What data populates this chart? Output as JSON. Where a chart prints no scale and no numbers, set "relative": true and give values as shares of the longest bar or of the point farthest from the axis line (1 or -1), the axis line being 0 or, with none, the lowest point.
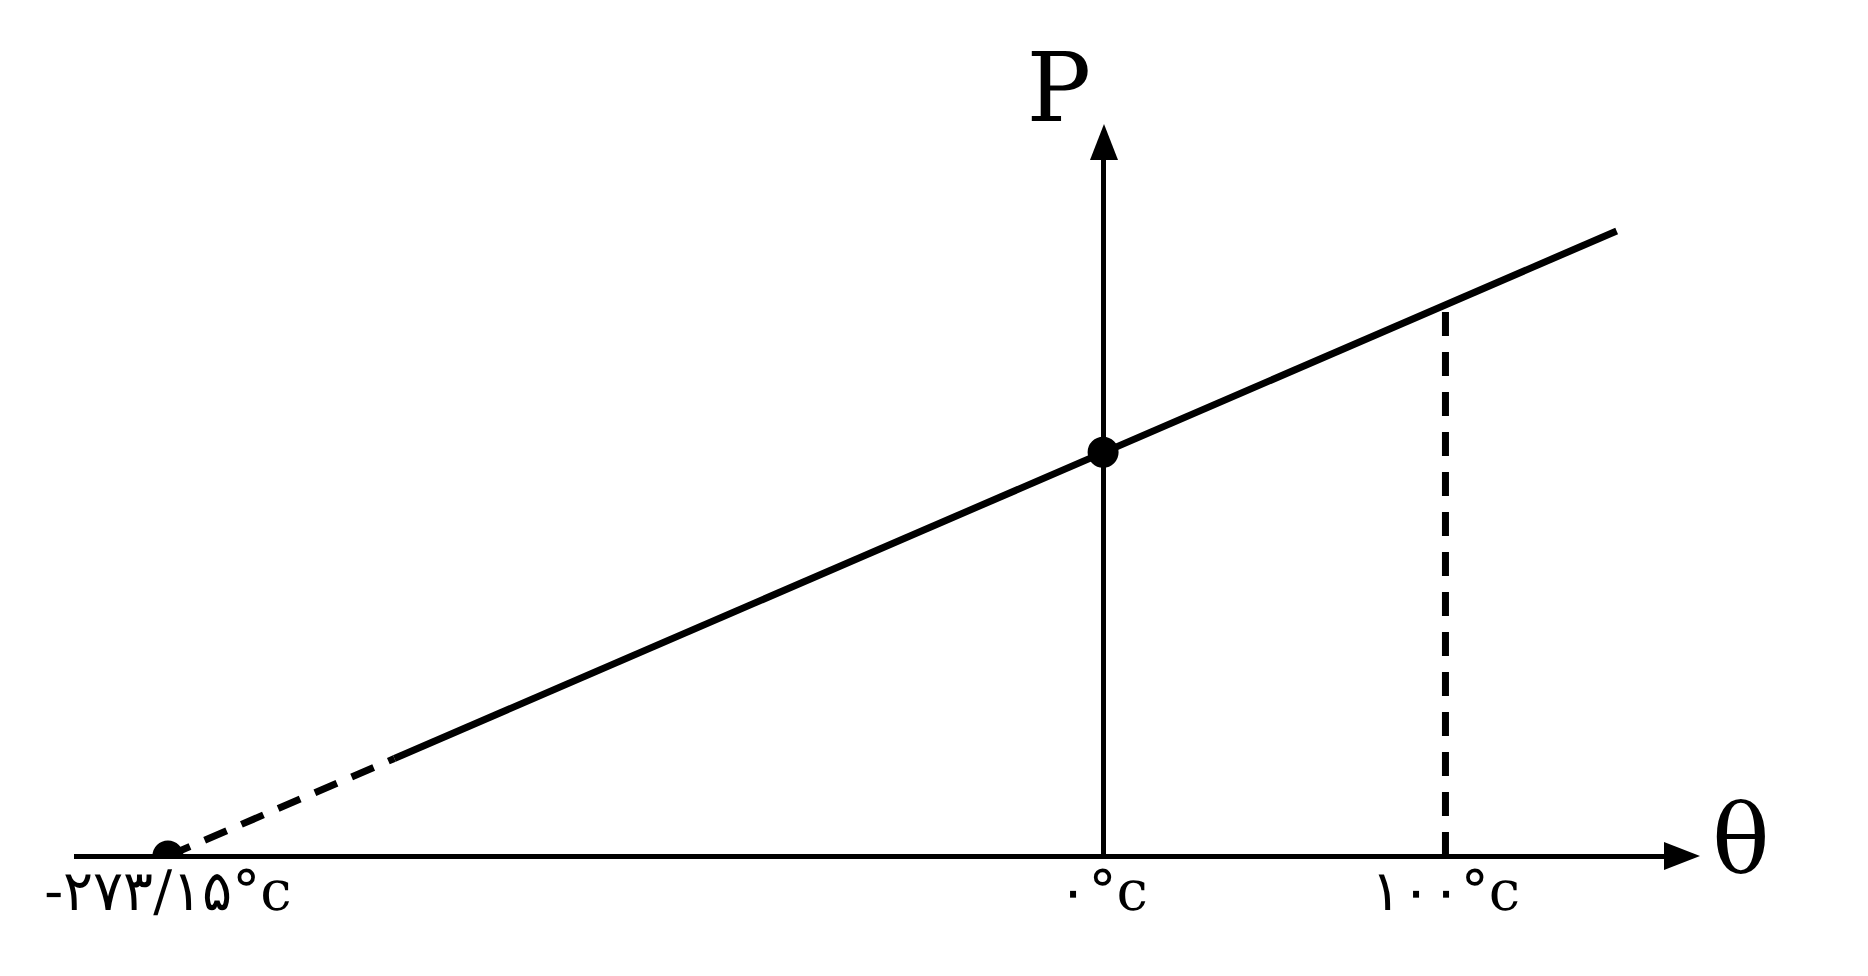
{
  "chart_data": {
    "type": "line",
    "xlabel": "θ",
    "ylabel": "P",
    "relative": true,
    "grid": false,
    "legend": false,
    "xlim": [
      -300,
      165
    ],
    "xticks": [
      {
        "value": -273.15,
        "label": "-۲۷۳/۱۵°c"
      },
      {
        "value": 0,
        "label": "۰°c"
      },
      {
        "value": 100,
        "label": "۱۰۰°c"
      }
    ],
    "series": [
      {
        "type": "line",
        "color": "#000000",
        "x": [
          -207,
          150
        ],
        "values": [
          0.156,
          1
        ],
        "line_style": "solid",
        "marker": "none"
      },
      {
        "type": "line",
        "color": "#000000",
        "x": [
          -273.15,
          -207
        ],
        "values": [
          0,
          0.156
        ],
        "line_style": "dashed",
        "marker": "none"
      },
      {
        "type": "line",
        "color": "#000000",
        "x": [
          100,
          100
        ],
        "values": [
          0,
          0.882
        ],
        "line_style": "dashed",
        "marker": "none"
      },
      {
        "type": "scatter",
        "color": "#000000",
        "x": [
          -273.15,
          0
        ],
        "values": [
          0,
          0.646
        ],
        "marker": "circle"
      }
    ]
  }
}
